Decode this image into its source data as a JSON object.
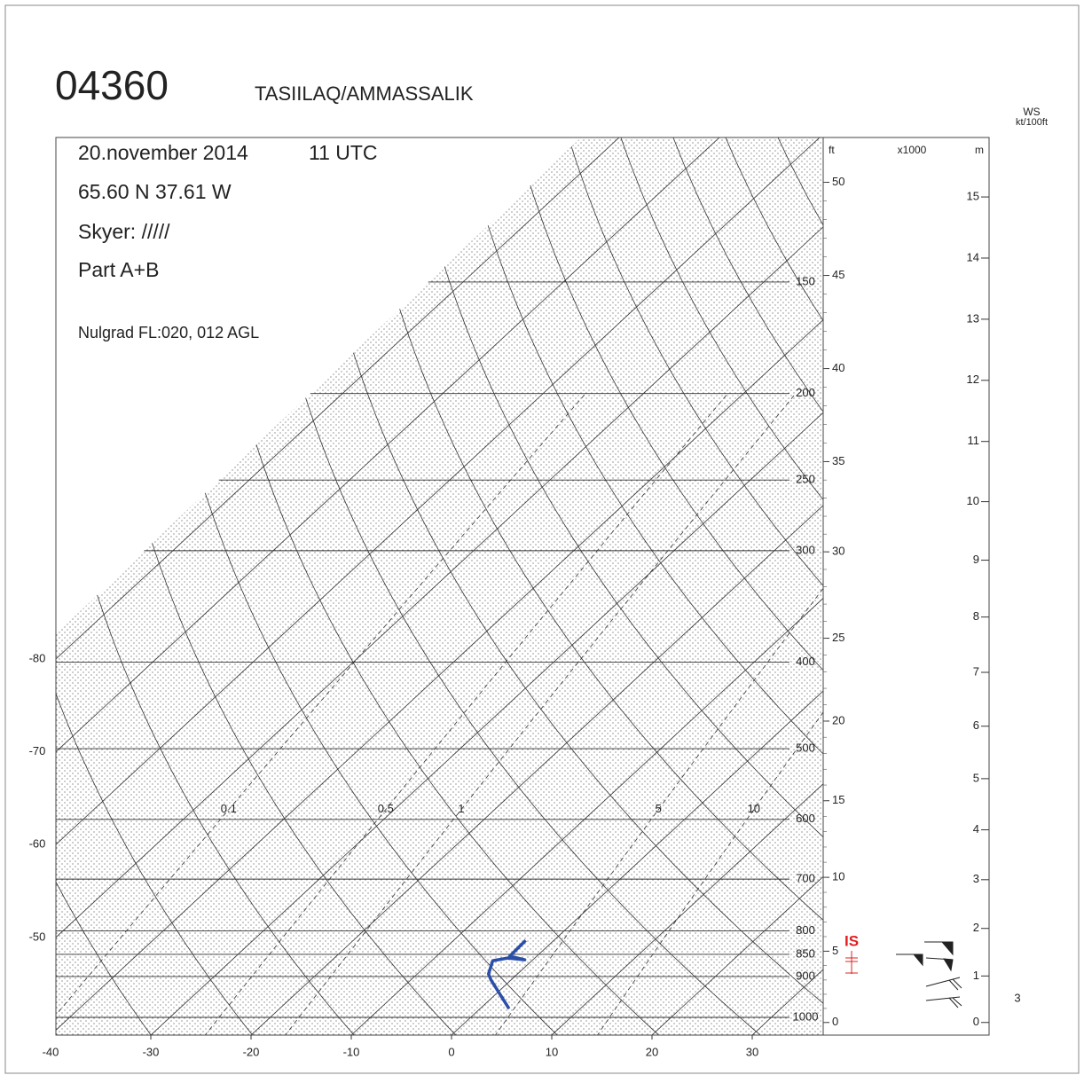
{
  "chart_data": {
    "type": "skew-t",
    "title": "04360",
    "subtitle": "TASIILAQ/AMMASSALIK",
    "info": [
      "20.november 2014",
      "11 UTC",
      "65.60 N  37.61 W",
      "Skyer: /////",
      "Part A+B",
      "Nulgrad FL:020, 012 AGL"
    ],
    "xticks": [
      -40,
      -30,
      -20,
      -10,
      0,
      10,
      20,
      30
    ],
    "left_ticks": [
      -80,
      -70,
      -60,
      -50
    ],
    "pressure_levels": [
      150,
      200,
      250,
      300,
      400,
      500,
      600,
      700,
      800,
      850,
      900,
      1000
    ],
    "mixing_ratio_labels": [
      0.1,
      0.5,
      1,
      5,
      10
    ],
    "height_ft_label": "ft",
    "height_ft_unit": "x1000",
    "height_ft_ticks": [
      0,
      5,
      10,
      15,
      20,
      25,
      30,
      35,
      40,
      45,
      50
    ],
    "height_m_label": "m",
    "height_m_ticks": [
      0,
      1,
      2,
      3,
      4,
      5,
      6,
      7,
      8,
      9,
      10,
      11,
      12,
      13,
      14,
      15
    ],
    "ws_label": "WS",
    "ws_unit": "kt/100ft",
    "ws_values": [
      3
    ],
    "is_label": "IS",
    "series": [
      {
        "color": "#2b4fa8",
        "pressure": [
          978,
          908,
          894,
          864,
          858,
          862,
          854,
          820
        ],
        "values": [
          2.9,
          -2.0,
          -2.9,
          -3.9,
          -2.7,
          -0.8,
          -2.7,
          -2.8
        ]
      }
    ]
  }
}
